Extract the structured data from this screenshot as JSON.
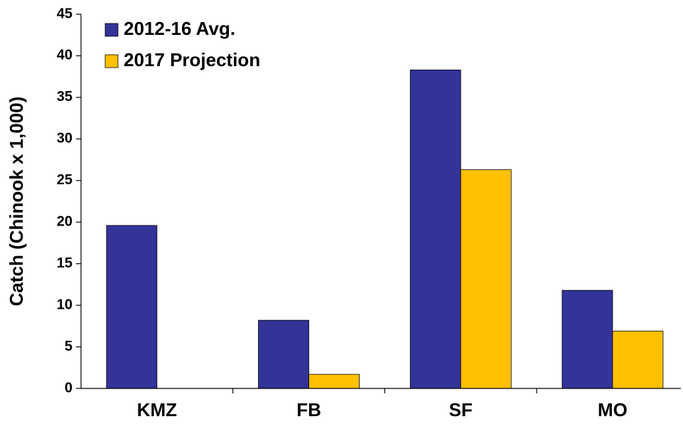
{
  "chart_data": {
    "type": "bar",
    "y_label": "Catch (Chinook x 1,000)",
    "categories": [
      "KMZ",
      "FB",
      "SF",
      "MO"
    ],
    "series": [
      {
        "name": "2012-16 Avg.",
        "color": "#333399",
        "values": [
          19.6,
          8.2,
          38.3,
          11.8
        ]
      },
      {
        "name": "2017 Projection",
        "color": "#FFC000",
        "values": [
          0,
          1.7,
          26.3,
          6.9
        ]
      }
    ],
    "ylim": [
      0,
      45
    ],
    "yticks": [
      0,
      5,
      10,
      15,
      20,
      25,
      30,
      35,
      40,
      45
    ],
    "legend": "upper left"
  }
}
